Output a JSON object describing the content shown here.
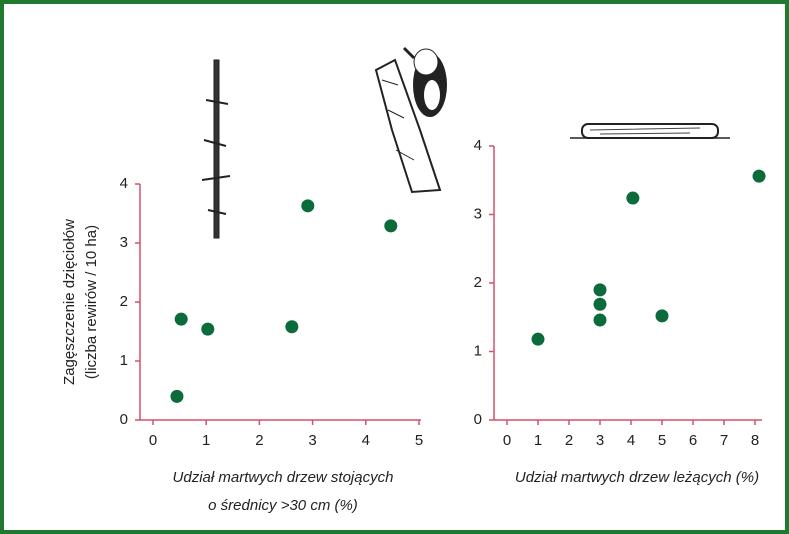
{
  "chart_data": [
    {
      "type": "scatter",
      "ylabel": [
        "Zagęszczenie dzięciołów",
        "(liczba rewirów / 10 ha)"
      ],
      "xlabel": [
        "Udział martwych drzew stojących",
        "o średnicy >30 cm (%)"
      ],
      "color": "#0b6b3a",
      "x": [
        0.45,
        0.53,
        1.03,
        2.61,
        2.91,
        4.47
      ],
      "values": [
        0.4,
        1.71,
        1.54,
        1.58,
        3.63,
        3.29
      ],
      "xlim": [
        0,
        5
      ],
      "xticks": [
        0,
        1,
        2,
        3,
        4,
        5
      ],
      "ylim": [
        0,
        4
      ],
      "yticks": [
        0,
        1,
        2,
        3,
        4
      ]
    },
    {
      "type": "scatter",
      "xlabel": [
        "Udział martwych drzew leżących (%)"
      ],
      "color": "#0b6b3a",
      "x": [
        1,
        3,
        3,
        3,
        4.06,
        5,
        8.13
      ],
      "values": [
        1.18,
        1.9,
        1.69,
        1.46,
        3.24,
        1.52,
        3.56
      ],
      "xlim": [
        0,
        8
      ],
      "xticks": [
        0,
        1,
        2,
        3,
        4,
        5,
        6,
        7,
        8
      ],
      "ylim": [
        0,
        4
      ],
      "yticks": [
        0,
        1,
        2,
        3,
        4
      ]
    }
  ]
}
